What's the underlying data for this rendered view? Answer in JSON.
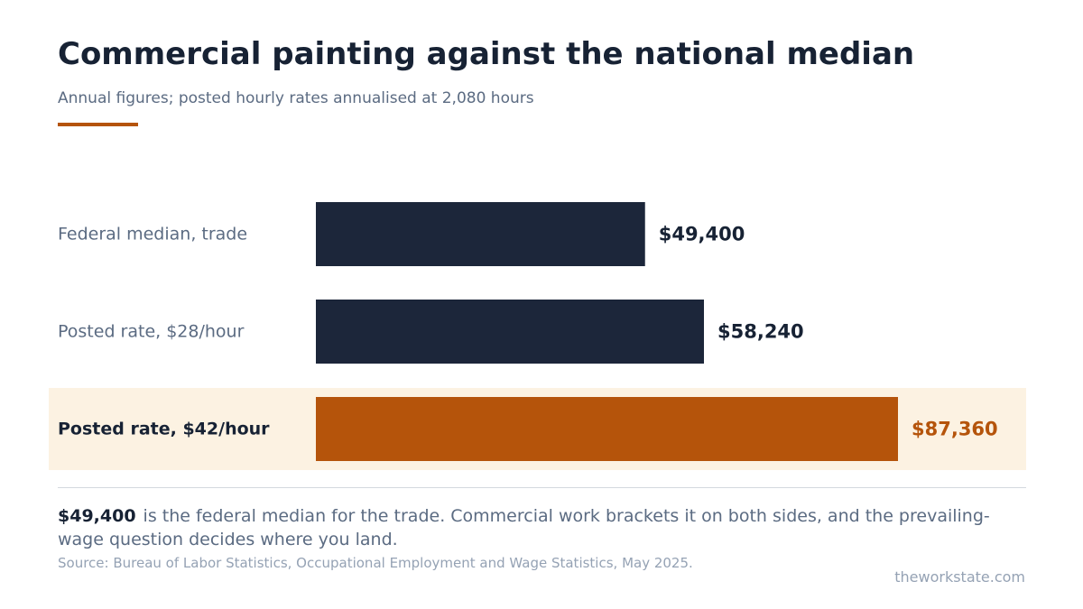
{
  "header": {
    "title": "Commercial painting against the national median",
    "subtitle": "Annual figures; posted hourly rates annualised at 2,080 hours"
  },
  "chart_data": {
    "type": "bar",
    "orientation": "horizontal",
    "title": "Commercial painting against the national median",
    "subtitle": "Annual figures; posted hourly rates annualised at 2,080 hours",
    "categories": [
      "Federal median, trade",
      "Posted rate, $28/hour",
      "Posted rate, $42/hour"
    ],
    "values": [
      49400,
      58240,
      87360
    ],
    "value_labels": [
      "$49,400",
      "$58,240",
      "$87,360"
    ],
    "highlighted_index": 2,
    "xlim": [
      0,
      87360
    ],
    "grid": false,
    "legend": "none",
    "colors": {
      "bar": "#1c263a",
      "highlight_bar": "#b5540b",
      "highlight_background": "#fcf2e2",
      "label": "#5b6b82",
      "highlight_label": "#172234",
      "value_label": "#172234",
      "highlight_value_label": "#b5540b"
    }
  },
  "note": {
    "value": "$49,400",
    "text": "is the federal median for the trade. Commercial work brackets it on both sides, and the prevailing-wage question decides where you land."
  },
  "footer": {
    "source": "Source: Bureau of Labor Statistics, Occupational Employment and Wage Statistics, May 2025.",
    "site": "theworkstate.com"
  }
}
